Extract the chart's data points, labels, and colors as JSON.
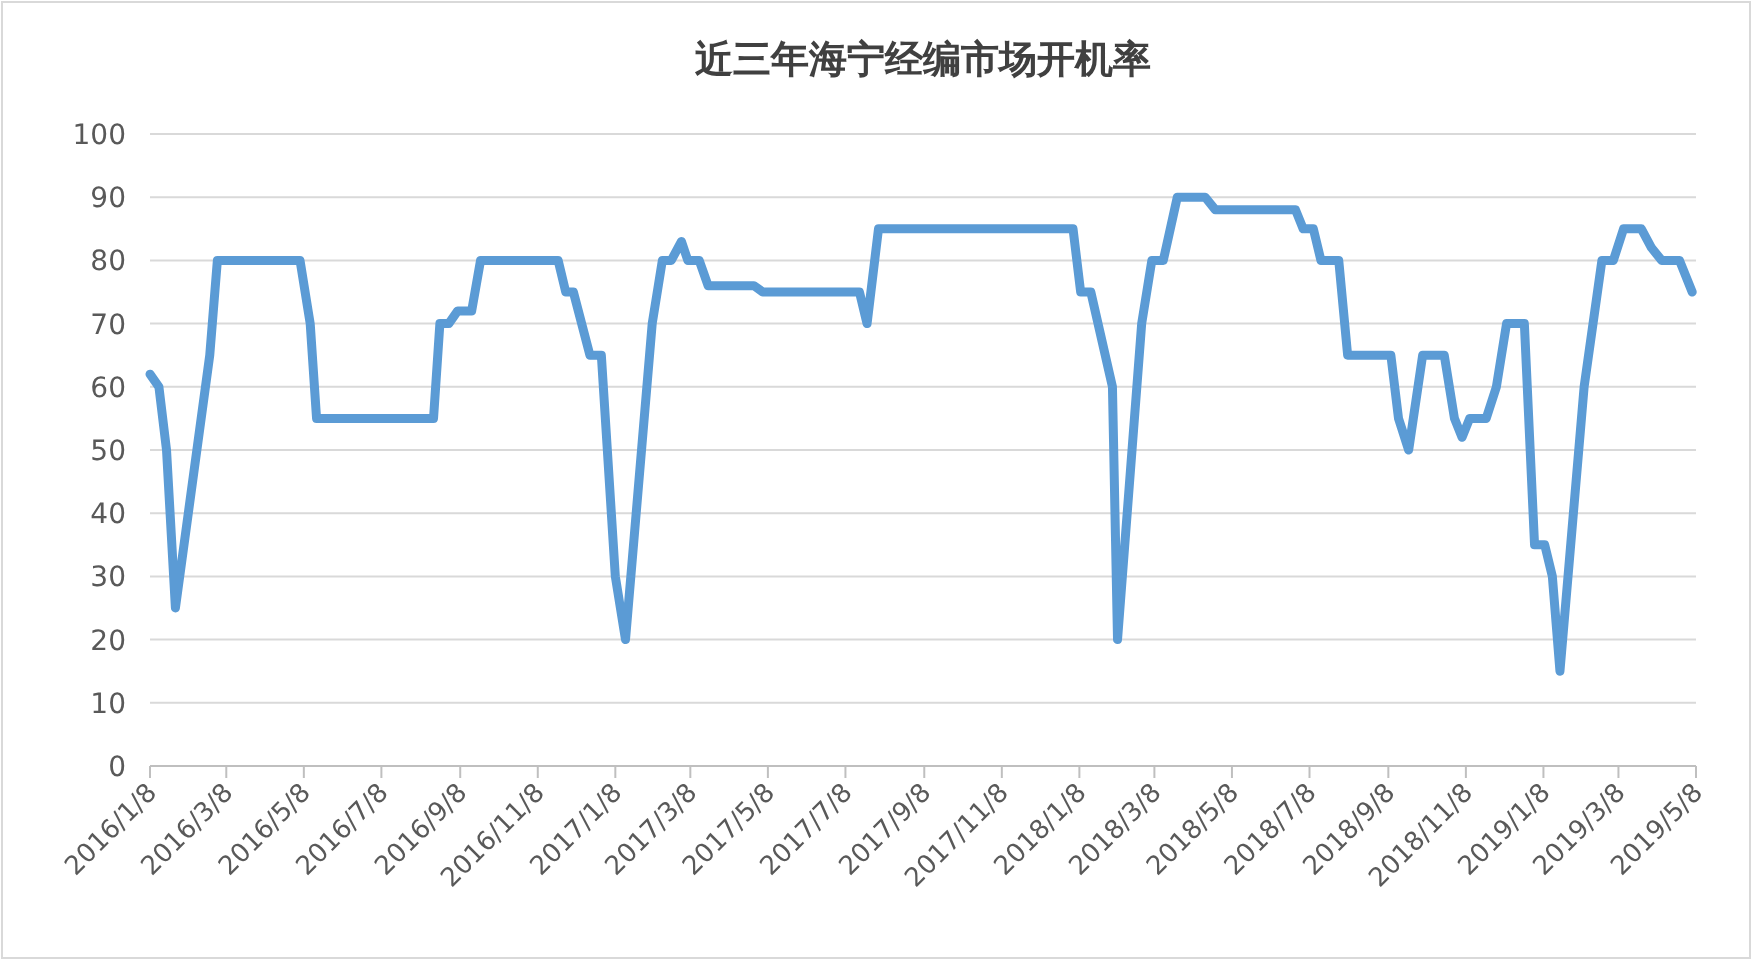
{
  "chart_data": {
    "type": "line",
    "title": "近三年海宁经编市场开机率",
    "grid": "y",
    "marker": "none",
    "line_style": "solid",
    "xlim": [
      "2016-01-08",
      "2019-05-08"
    ],
    "xticks": [
      {
        "value": "2016-01-08",
        "label": "2016/1/8"
      },
      {
        "value": "2016-03-08",
        "label": "2016/3/8"
      },
      {
        "value": "2016-05-08",
        "label": "2016/5/8"
      },
      {
        "value": "2016-07-08",
        "label": "2016/7/8"
      },
      {
        "value": "2016-09-08",
        "label": "2016/9/8"
      },
      {
        "value": "2016-11-08",
        "label": "2016/11/8"
      },
      {
        "value": "2017-01-08",
        "label": "2017/1/8"
      },
      {
        "value": "2017-03-08",
        "label": "2017/3/8"
      },
      {
        "value": "2017-05-08",
        "label": "2017/5/8"
      },
      {
        "value": "2017-07-08",
        "label": "2017/7/8"
      },
      {
        "value": "2017-09-08",
        "label": "2017/9/8"
      },
      {
        "value": "2017-11-08",
        "label": "2017/11/8"
      },
      {
        "value": "2018-01-08",
        "label": "2018/1/8"
      },
      {
        "value": "2018-03-08",
        "label": "2018/3/8"
      },
      {
        "value": "2018-05-08",
        "label": "2018/5/8"
      },
      {
        "value": "2018-07-08",
        "label": "2018/7/8"
      },
      {
        "value": "2018-09-08",
        "label": "2018/9/8"
      },
      {
        "value": "2018-11-08",
        "label": "2018/11/8"
      },
      {
        "value": "2019-01-08",
        "label": "2019/1/8"
      },
      {
        "value": "2019-03-08",
        "label": "2019/3/8"
      },
      {
        "value": "2019-05-08",
        "label": "2019/5/8"
      }
    ],
    "ylim": [
      0,
      100
    ],
    "yticks": [
      0,
      10,
      20,
      30,
      40,
      50,
      60,
      70,
      80,
      90,
      100
    ],
    "x": [
      "2016-01-08",
      "2016-01-15",
      "2016-01-21",
      "2016-01-28",
      "2016-02-24",
      "2016-03-01",
      "2016-05-05",
      "2016-05-13",
      "2016-05-18",
      "2016-08-18",
      "2016-08-23",
      "2016-08-30",
      "2016-09-06",
      "2016-09-17",
      "2016-09-24",
      "2016-11-24",
      "2016-11-30",
      "2016-12-06",
      "2016-12-19",
      "2016-12-28",
      "2017-01-08",
      "2017-01-16",
      "2017-02-06",
      "2017-02-14",
      "2017-02-21",
      "2017-03-01",
      "2017-03-06",
      "2017-03-15",
      "2017-03-22",
      "2017-04-27",
      "2017-05-04",
      "2017-07-19",
      "2017-07-25",
      "2017-08-03",
      "2018-01-03",
      "2018-01-09",
      "2018-01-17",
      "2018-02-03",
      "2018-02-07",
      "2018-02-26",
      "2018-03-06",
      "2018-03-15",
      "2018-03-26",
      "2018-04-17",
      "2018-04-25",
      "2018-06-27",
      "2018-07-03",
      "2018-07-11",
      "2018-07-17",
      "2018-07-31",
      "2018-08-07",
      "2018-09-10",
      "2018-09-16",
      "2018-09-24",
      "2018-10-05",
      "2018-10-22",
      "2018-10-30",
      "2018-11-05",
      "2018-11-11",
      "2018-11-24",
      "2018-12-02",
      "2018-12-10",
      "2018-12-24",
      "2019-01-01",
      "2019-01-09",
      "2019-01-15",
      "2019-01-21",
      "2019-02-09",
      "2019-02-23",
      "2019-03-04",
      "2019-03-12",
      "2019-03-26",
      "2019-04-03",
      "2019-04-11",
      "2019-04-25",
      "2019-05-05"
    ],
    "series": [
      {
        "color": "#5b9bd5",
        "values": [
          62,
          60,
          50,
          25,
          65,
          80,
          80,
          70,
          55,
          55,
          70,
          70,
          72,
          72,
          80,
          80,
          75,
          75,
          65,
          65,
          30,
          20,
          70,
          80,
          80,
          83,
          80,
          80,
          76,
          76,
          75,
          75,
          70,
          85,
          85,
          75,
          75,
          60,
          20,
          70,
          80,
          80,
          90,
          90,
          88,
          88,
          85,
          85,
          80,
          80,
          65,
          65,
          55,
          50,
          65,
          65,
          55,
          52,
          55,
          55,
          60,
          70,
          70,
          35,
          35,
          30,
          15,
          60,
          80,
          80,
          85,
          85,
          82,
          80,
          80,
          75
        ]
      }
    ]
  }
}
